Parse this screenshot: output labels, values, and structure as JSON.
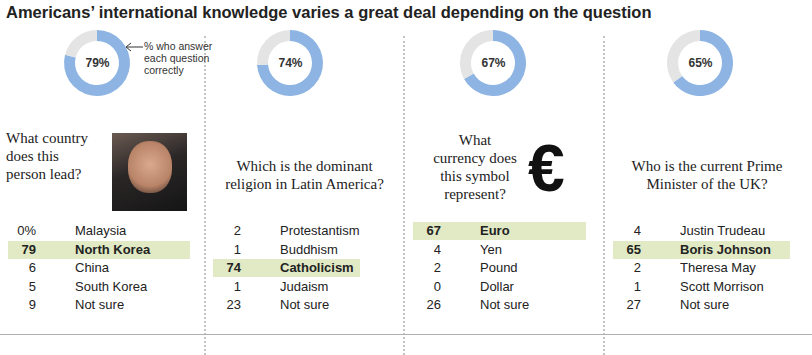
{
  "title": "Americans’ international knowledge varies a great deal depending on the question",
  "annotation": "% who answer each question correctly",
  "chart_data": [
    {
      "type": "donut",
      "title": [
        "What country",
        "does this",
        "person lead?"
      ],
      "values": [
        79,
        21
      ],
      "colors": [
        "#8db4e2",
        "#e4e4e4"
      ],
      "value_labels": [
        "79%",
        null
      ],
      "answers": {
        "categories": [
          "Malaysia",
          "North Korea",
          "China",
          "South Korea",
          "Not sure"
        ],
        "values": [
          0,
          79,
          6,
          5,
          9
        ],
        "value_labels": [
          "0%",
          null,
          null,
          null,
          null
        ],
        "colors": [
          "#ffffff",
          "#e1eac4",
          "#ffffff",
          "#ffffff",
          "#ffffff"
        ]
      }
    },
    {
      "type": "donut",
      "title": [
        "Which is the dominant",
        "religion in Latin America?"
      ],
      "values": [
        74,
        26
      ],
      "colors": [
        "#8db4e2",
        "#e4e4e4"
      ],
      "value_labels": [
        "74%",
        null
      ],
      "answers": {
        "categories": [
          "Protestantism",
          "Buddhism",
          "Catholicism",
          "Judaism",
          "Not sure"
        ],
        "values": [
          2,
          1,
          74,
          1,
          23
        ],
        "colors": [
          "#ffffff",
          "#ffffff",
          "#e1eac4",
          "#ffffff",
          "#ffffff"
        ]
      }
    },
    {
      "type": "donut",
      "title": [
        "What",
        "currency does",
        "this symbol",
        "represent?"
      ],
      "symbol": "€",
      "values": [
        67,
        33
      ],
      "colors": [
        "#8db4e2",
        "#e4e4e4"
      ],
      "value_labels": [
        "67%",
        null
      ],
      "answers": {
        "categories": [
          "Euro",
          "Yen",
          "Pound",
          "Dollar",
          "Not sure"
        ],
        "values": [
          67,
          4,
          2,
          0,
          26
        ],
        "colors": [
          "#e1eac4",
          "#ffffff",
          "#ffffff",
          "#ffffff",
          "#ffffff"
        ]
      }
    },
    {
      "type": "donut",
      "title": [
        "Who is the current Prime",
        "Minister of the UK?"
      ],
      "values": [
        65,
        35
      ],
      "colors": [
        "#8db4e2",
        "#e4e4e4"
      ],
      "value_labels": [
        "65%",
        null
      ],
      "answers": {
        "categories": [
          "Justin Trudeau",
          "Boris Johnson",
          "Theresa May",
          "Scott Morrison",
          "Not sure"
        ],
        "values": [
          4,
          65,
          2,
          1,
          27
        ],
        "colors": [
          "#ffffff",
          "#e1eac4",
          "#ffffff",
          "#ffffff",
          "#ffffff"
        ]
      }
    }
  ]
}
